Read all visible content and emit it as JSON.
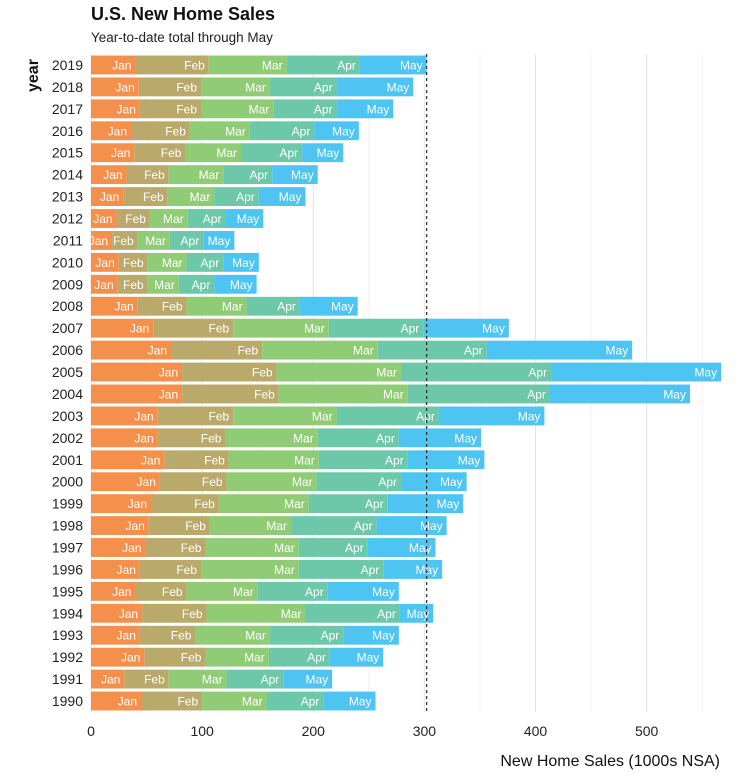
{
  "chart_data": {
    "type": "bar",
    "orientation": "horizontal",
    "stacked": true,
    "title": "U.S. New Home Sales",
    "subtitle": "Year-to-date total through May",
    "xlabel": "New Home Sales (1000s NSA)",
    "ylabel": "year",
    "xlim": [
      0,
      566
    ],
    "xticks": [
      0,
      100,
      200,
      300,
      400,
      500
    ],
    "reference_line": 302,
    "grid": true,
    "legend": "none",
    "months": [
      "Jan",
      "Feb",
      "Mar",
      "Apr",
      "May"
    ],
    "colors": {
      "Jan": "#F4904C",
      "Feb": "#B9A96A",
      "Mar": "#90CC76",
      "Apr": "#6DC8AA",
      "May": "#4DC4F1"
    },
    "rows": [
      {
        "year": "2019",
        "values": [
          40,
          66,
          70,
          66,
          60
        ]
      },
      {
        "year": "2018",
        "values": [
          43,
          56,
          62,
          60,
          69
        ]
      },
      {
        "year": "2017",
        "values": [
          44,
          55,
          65,
          57,
          51
        ]
      },
      {
        "year": "2016",
        "values": [
          36,
          53,
          54,
          58,
          40
        ]
      },
      {
        "year": "2015",
        "values": [
          39,
          46,
          50,
          55,
          37
        ]
      },
      {
        "year": "2014",
        "values": [
          32,
          38,
          49,
          44,
          41
        ]
      },
      {
        "year": "2013",
        "values": [
          29,
          40,
          42,
          40,
          42
        ]
      },
      {
        "year": "2012",
        "values": [
          23,
          30,
          34,
          34,
          34
        ]
      },
      {
        "year": "2011",
        "values": [
          19,
          23,
          29,
          30,
          28
        ]
      },
      {
        "year": "2010",
        "values": [
          25,
          26,
          35,
          33,
          32
        ]
      },
      {
        "year": "2009",
        "values": [
          24,
          27,
          28,
          32,
          38
        ]
      },
      {
        "year": "2008",
        "values": [
          42,
          44,
          54,
          48,
          52
        ]
      },
      {
        "year": "2007",
        "values": [
          56,
          72,
          86,
          85,
          77
        ]
      },
      {
        "year": "2006",
        "values": [
          72,
          82,
          104,
          98,
          131
        ]
      },
      {
        "year": "2005",
        "values": [
          82,
          85,
          112,
          135,
          153
        ]
      },
      {
        "year": "2004",
        "values": [
          82,
          87,
          116,
          128,
          126
        ]
      },
      {
        "year": "2003",
        "values": [
          60,
          68,
          93,
          92,
          95
        ]
      },
      {
        "year": "2002",
        "values": [
          60,
          61,
          83,
          73,
          74
        ]
      },
      {
        "year": "2001",
        "values": [
          66,
          58,
          81,
          80,
          69
        ]
      },
      {
        "year": "2000",
        "values": [
          62,
          60,
          81,
          76,
          59
        ]
      },
      {
        "year": "1999",
        "values": [
          54,
          61,
          81,
          71,
          68
        ]
      },
      {
        "year": "1998",
        "values": [
          52,
          55,
          73,
          77,
          63
        ]
      },
      {
        "year": "1997",
        "values": [
          49,
          54,
          84,
          62,
          61
        ]
      },
      {
        "year": "1996",
        "values": [
          44,
          55,
          88,
          76,
          53
        ]
      },
      {
        "year": "1995",
        "values": [
          40,
          46,
          64,
          63,
          64
        ]
      },
      {
        "year": "1994",
        "values": [
          46,
          58,
          89,
          85,
          30
        ]
      },
      {
        "year": "1993",
        "values": [
          44,
          50,
          67,
          66,
          50
        ]
      },
      {
        "year": "1992",
        "values": [
          48,
          55,
          57,
          55,
          48
        ]
      },
      {
        "year": "1991",
        "values": [
          30,
          40,
          52,
          51,
          44
        ]
      },
      {
        "year": "1990",
        "values": [
          45,
          55,
          58,
          51,
          47
        ]
      }
    ]
  }
}
